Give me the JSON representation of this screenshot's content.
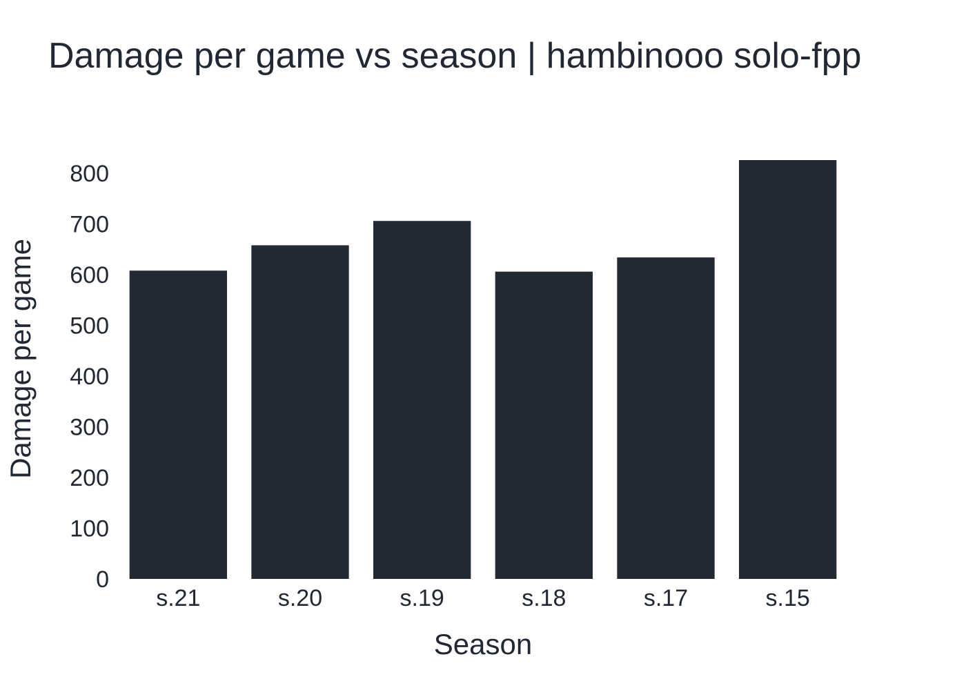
{
  "chart_data": {
    "type": "bar",
    "title": "Damage per game vs season | hambinooo solo-fpp",
    "xlabel": "Season",
    "ylabel": "Damage per game",
    "categories": [
      "s.21",
      "s.20",
      "s.19",
      "s.18",
      "s.17",
      "s.15"
    ],
    "values": [
      608,
      658,
      706,
      606,
      634,
      826
    ],
    "ylim": [
      0,
      826
    ],
    "yticks": [
      0,
      100,
      200,
      300,
      400,
      500,
      600,
      700,
      800
    ],
    "grid": false,
    "legend": "none",
    "colors": {
      "bar": "#232933",
      "text": "#222833",
      "background": "#ffffff"
    }
  }
}
